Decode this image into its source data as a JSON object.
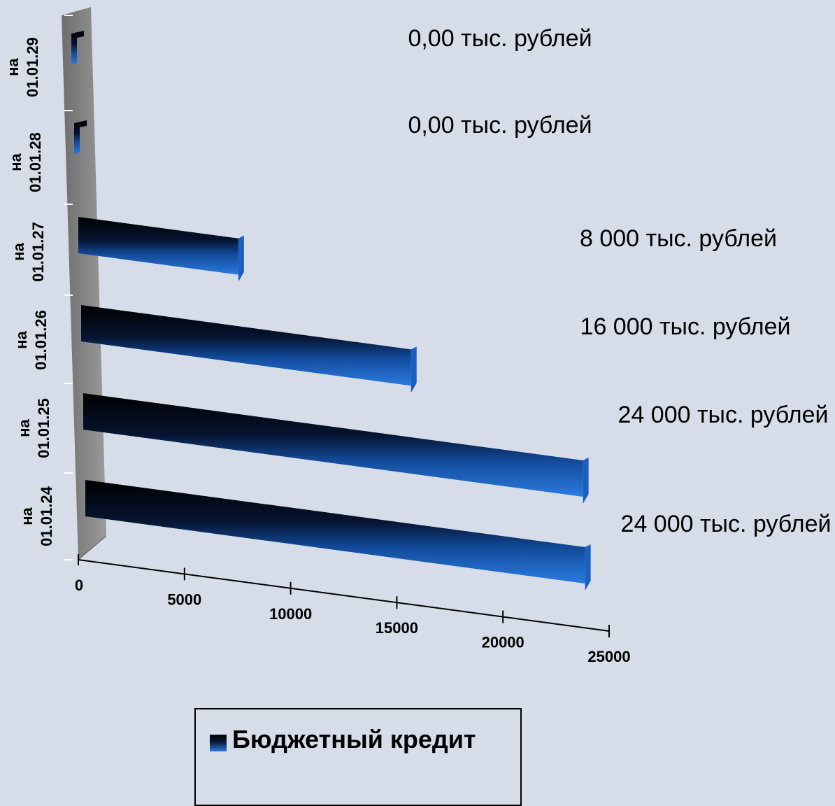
{
  "chart_data": {
    "type": "bar",
    "orientation": "horizontal",
    "style": "3d",
    "categories": [
      "на 01.01.24",
      "на 01.01.25",
      "на 01.01.26",
      "на 01.01.27",
      "на 01.01.28",
      "на 01.01.29"
    ],
    "series": [
      {
        "name": "Бюджетный кредит",
        "values": [
          24000,
          24000,
          16000,
          8000,
          0,
          0
        ]
      }
    ],
    "data_labels": [
      "24 000 тыс. рублей",
      "24 000 тыс. рублей",
      "16 000 тыс. рублей",
      "8 000 тыс. рублей",
      "0,00 тыс. рублей",
      "0,00 тыс. рублей"
    ],
    "x_ticks": [
      "0",
      "5000",
      "10000",
      "15000",
      "20000",
      "25000"
    ],
    "xlim": [
      0,
      25000
    ],
    "grid": false,
    "legend_position": "bottom",
    "colors": {
      "bar_top": "#000000",
      "bar_front": "#2a7be0",
      "wall": "#8c8c8c",
      "background": "#d6dde8"
    }
  }
}
